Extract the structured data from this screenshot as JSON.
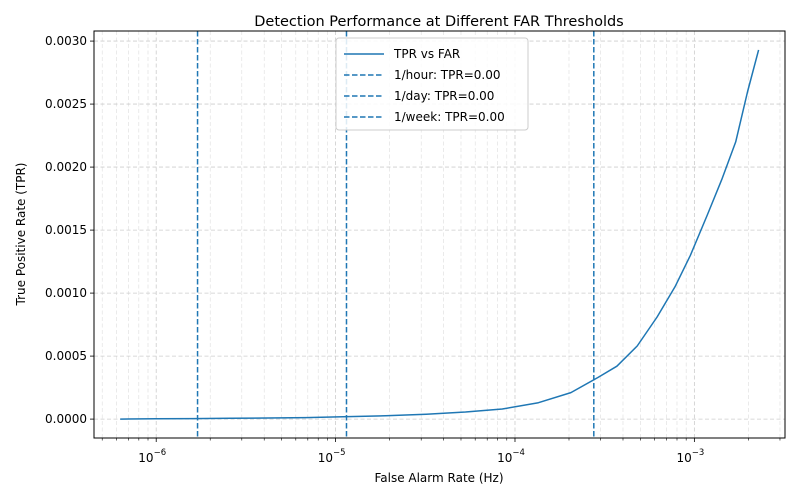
{
  "chart_data": {
    "type": "line",
    "title": "Detection Performance at Different FAR Thresholds",
    "xlabel": "False Alarm Rate (Hz)",
    "ylabel": "True Positive Rate (TPR)",
    "xscale": "log",
    "xlim": [
      4.5e-07,
      0.0032
    ],
    "ylim": [
      -0.00015,
      0.00308
    ],
    "grid": true,
    "legend_position": "top-center",
    "x_major_ticks": [
      {
        "value": 1e-06,
        "base": "10",
        "exp": "−6"
      },
      {
        "value": 1e-05,
        "base": "10",
        "exp": "−5"
      },
      {
        "value": 0.0001,
        "base": "10",
        "exp": "−4"
      },
      {
        "value": 0.001,
        "base": "10",
        "exp": "−3"
      }
    ],
    "y_ticks": [
      {
        "value": 0.0,
        "label": "0.0000"
      },
      {
        "value": 0.0005,
        "label": "0.0005"
      },
      {
        "value": 0.001,
        "label": "0.0010"
      },
      {
        "value": 0.0015,
        "label": "0.0015"
      },
      {
        "value": 0.002,
        "label": "0.0020"
      },
      {
        "value": 0.0025,
        "label": "0.0025"
      },
      {
        "value": 0.003,
        "label": "0.0030"
      }
    ],
    "series": [
      {
        "name": "TPR vs FAR",
        "color": "#1f77b4",
        "style": "solid",
        "x": [
          6.3e-07,
          1e-06,
          1.6e-06,
          2.6e-06,
          4.2e-06,
          6.8e-06,
          1.1e-05,
          1.9e-05,
          3.2e-05,
          5.3e-05,
          8.5e-05,
          0.000135,
          0.000205,
          0.00029,
          0.00037,
          0.00048,
          0.00062,
          0.00078,
          0.00095,
          0.00118,
          0.00142,
          0.0017,
          0.00198,
          0.00228
        ],
        "y": [
          0.0,
          2e-06,
          4e-06,
          6e-06,
          9e-06,
          1.2e-05,
          1.8e-05,
          2.6e-05,
          3.8e-05,
          5.6e-05,
          8e-05,
          0.00013,
          0.00021,
          0.00033,
          0.00042,
          0.00058,
          0.00081,
          0.00105,
          0.0013,
          0.00162,
          0.0019,
          0.0022,
          0.0026,
          0.00293
        ]
      }
    ],
    "threshold_lines": [
      {
        "name": "1/hour: TPR=0.00",
        "x": 1.7e-06,
        "color": "#1f77b4",
        "style": "dashed"
      },
      {
        "name": "1/day: TPR=0.00",
        "x": 1.15e-05,
        "color": "#1f77b4",
        "style": "dashed"
      },
      {
        "name": "1/week: TPR=0.00",
        "x": 0.000275,
        "color": "#1f77b4",
        "style": "dashed"
      }
    ]
  }
}
